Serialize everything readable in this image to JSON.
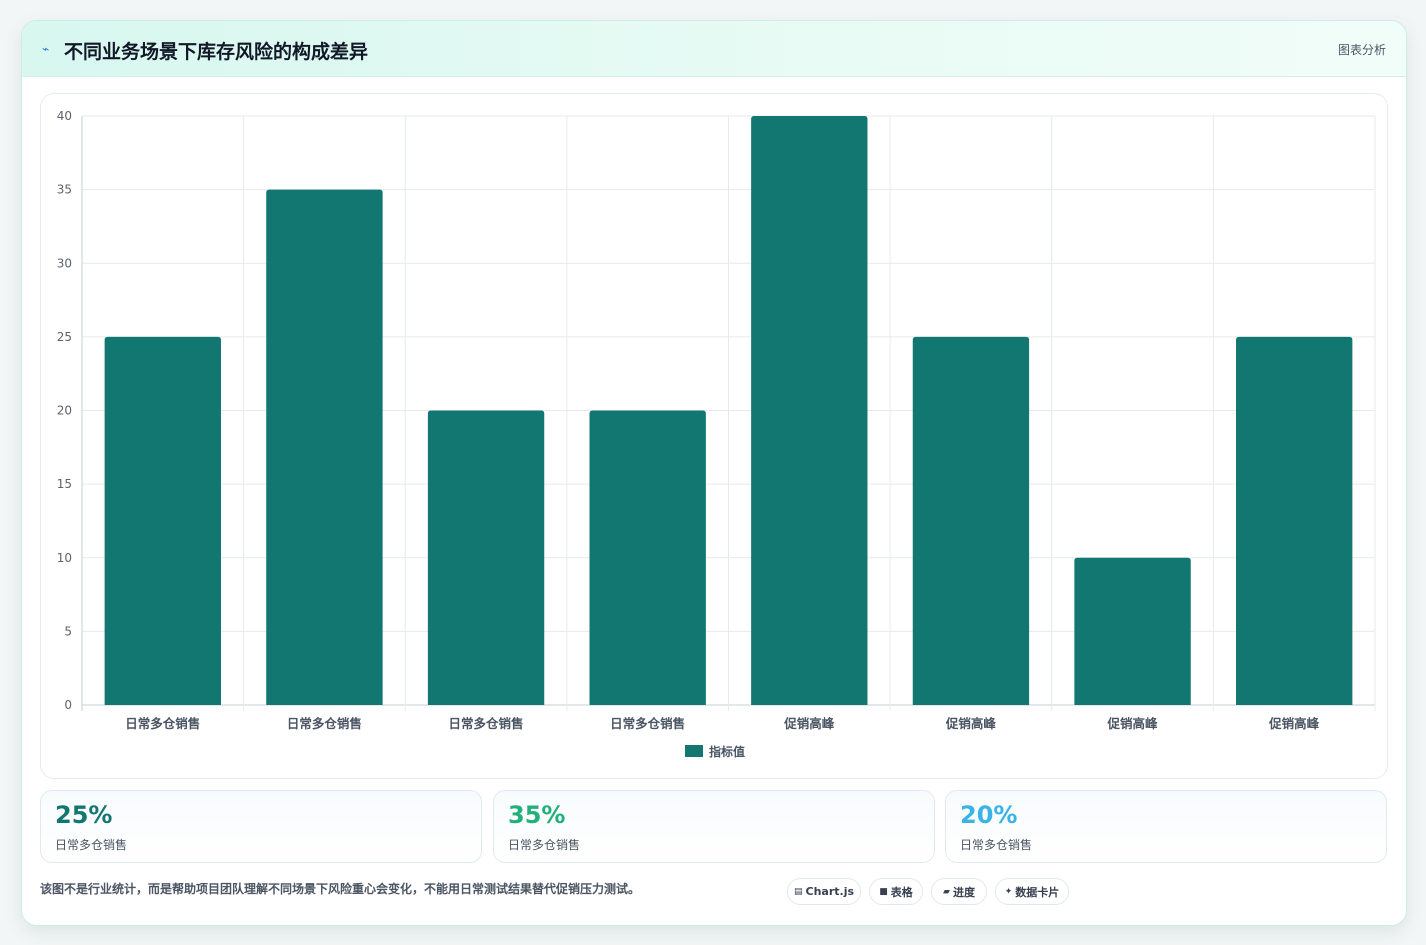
{
  "header": {
    "icon": "sparkline-icon",
    "title": "不同业务场景下库存风险的构成差异",
    "tag": "图表分析"
  },
  "chart_data": {
    "type": "bar",
    "categories": [
      "日常多仓销售",
      "日常多仓销售",
      "日常多仓销售",
      "日常多仓销售",
      "促销高峰",
      "促销高峰",
      "促销高峰",
      "促销高峰"
    ],
    "series": [
      {
        "name": "指标值",
        "values": [
          25,
          35,
          20,
          20,
          40,
          25,
          10,
          25
        ],
        "color": "#117770"
      }
    ],
    "ylim": [
      0,
      40
    ],
    "yticks": [
      0,
      5,
      10,
      15,
      20,
      25,
      30,
      35,
      40
    ],
    "grid": true,
    "legend_position": "bottom-center"
  },
  "stats": [
    {
      "value": "25%",
      "label": "日常多仓销售",
      "color": "#117770"
    },
    {
      "value": "35%",
      "label": "日常多仓销售",
      "color": "#22b07a"
    },
    {
      "value": "20%",
      "label": "日常多仓销售",
      "color": "#39b4e6"
    }
  ],
  "footnote": "该图不是行业统计，而是帮助项目团队理解不同场景下风险重心会变化，不能用日常测试结果替代促销压力测试。",
  "chips": [
    {
      "icon": "chart-icon",
      "glyph": "▤",
      "label": "Chart.js"
    },
    {
      "icon": "table-icon",
      "glyph": "■",
      "label": "表格"
    },
    {
      "icon": "progress-icon",
      "glyph": "▰",
      "label": "进度"
    },
    {
      "icon": "sparkle-icon",
      "glyph": "✦",
      "label": "数据卡片"
    }
  ]
}
